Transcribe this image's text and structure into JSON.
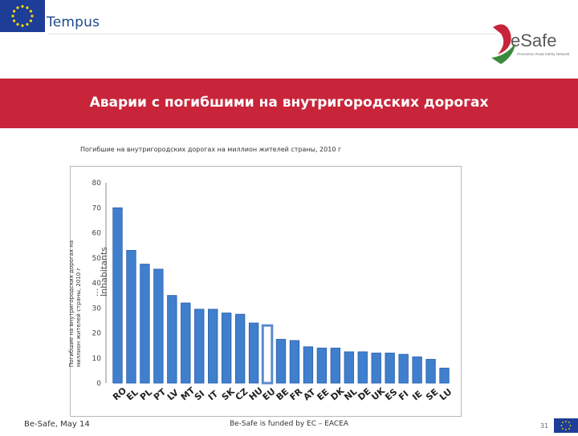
{
  "header": {
    "program_name": "Tempus",
    "brand_name": "eSafe",
    "brand_tagline": "Prevention Road Safety Network"
  },
  "slide": {
    "title": "Аварии с погибшими на внутригородских дорогах",
    "subtitle": "Погибшие на внутригородских дорогах на миллион жителей страны, 2010 г"
  },
  "footer": {
    "left": "Be-Safe, May 14",
    "center": "Be-Safe is funded by EC – EACEA",
    "page": "31"
  },
  "colors": {
    "title_band": "#c8253a",
    "bar": "#3f7fce",
    "bar_edge": "#2a5ea8",
    "highlight_outline": "#5b8ad0"
  },
  "chart_data": {
    "type": "bar",
    "title": "Погибшие на внутригородских дорогах на миллион жителей страны, 2010 г",
    "ylabel_lines": [
      "Погибшие на внутригородских дорогах на",
      "миллион жителей страны, 2010 г"
    ],
    "ylabel_overlay_lines": [
      "...",
      "Inhabitants"
    ],
    "categories": [
      "RO",
      "EL",
      "PL",
      "PT",
      "LV",
      "MT",
      "SI",
      "IT",
      "SK",
      "CZ",
      "HU",
      "EU",
      "BE",
      "FR",
      "AT",
      "EE",
      "DK",
      "NL",
      "DE",
      "UK",
      "ES",
      "FI",
      "IE",
      "SE",
      "LU"
    ],
    "values": [
      70,
      53,
      47.5,
      45.5,
      35,
      32,
      29.5,
      29.5,
      28,
      27.5,
      24,
      23,
      17.5,
      17,
      14.5,
      14,
      14,
      12.5,
      12.5,
      12,
      12,
      11.5,
      10.5,
      9.5,
      6
    ],
    "highlight_category": "EU",
    "ylim": [
      0,
      80
    ],
    "yticks": [
      0,
      10,
      20,
      30,
      40,
      50,
      60,
      70,
      80
    ],
    "grid": false,
    "legend": "none"
  }
}
